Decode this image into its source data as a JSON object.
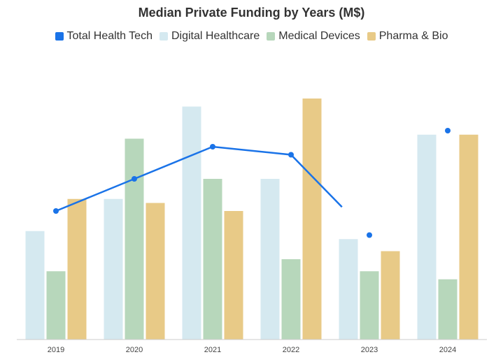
{
  "chart_data": {
    "type": "bar",
    "title": "Median Private Funding by Years (M$)",
    "xlabel": "",
    "ylabel": "",
    "ylim": [
      0,
      30
    ],
    "grid": false,
    "legend_position": "top",
    "categories": [
      "2019",
      "2020",
      "2021",
      "2022",
      "2023",
      "2024"
    ],
    "series": [
      {
        "name": "Digital Healthcare",
        "type": "bar",
        "color": "#d5e9f0",
        "values": [
          13.5,
          17.5,
          29,
          20,
          12.5,
          25.5
        ]
      },
      {
        "name": "Medical Devices",
        "type": "bar",
        "color": "#b7d7bb",
        "values": [
          8.5,
          25,
          20,
          10,
          8.5,
          7.5
        ]
      },
      {
        "name": "Pharma & Bio",
        "type": "bar",
        "color": "#e8ca87",
        "values": [
          17.5,
          17,
          16,
          30,
          11,
          25.5
        ]
      },
      {
        "name": "Total Health Tech",
        "type": "line",
        "color": "#1a73e8",
        "values": [
          16,
          20,
          24,
          23,
          13,
          26
        ]
      }
    ]
  },
  "legend": [
    {
      "label": "Total Health Tech",
      "color": "#1a73e8"
    },
    {
      "label": "Digital Healthcare",
      "color": "#d5e9f0"
    },
    {
      "label": "Medical Devices",
      "color": "#b7d7bb"
    },
    {
      "label": "Pharma & Bio",
      "color": "#e8ca87"
    }
  ]
}
